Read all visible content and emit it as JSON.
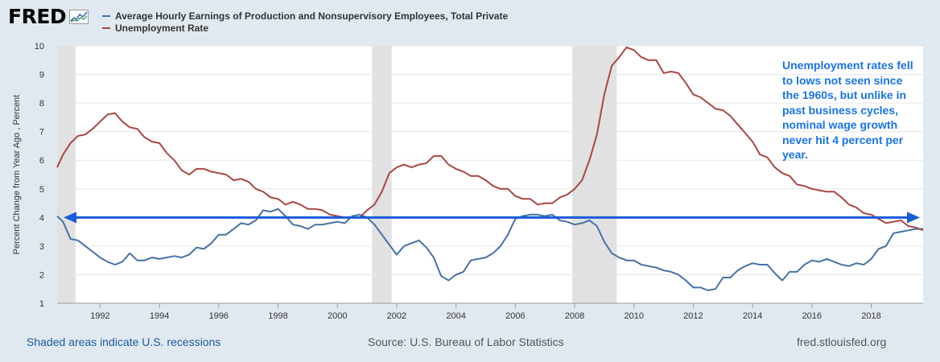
{
  "header": {
    "logo": "FRED"
  },
  "chart_data": {
    "type": "line",
    "ylabel": "Percent Change from Year Ago , Percent",
    "ylim": [
      1,
      10
    ],
    "yticks": [
      1,
      2,
      3,
      4,
      5,
      6,
      7,
      8,
      9,
      10
    ],
    "xlim": [
      1990.55,
      2019.75
    ],
    "xticks": [
      1992,
      1994,
      1996,
      1998,
      2000,
      2002,
      2004,
      2006,
      2008,
      2010,
      2012,
      2014,
      2016,
      2018
    ],
    "grid": true,
    "legend_position": "top-left",
    "recessions": [
      [
        1990.55,
        1991.17
      ],
      [
        2001.17,
        2001.83
      ],
      [
        2007.92,
        2009.42
      ]
    ],
    "series": [
      {
        "name": "Average Hourly Earnings of Production and Nonsupervisory Employees, Total Private",
        "color": "#4572a7",
        "x": [
          1990.55,
          1990.75,
          1991.0,
          1991.25,
          1991.5,
          1991.75,
          1992.0,
          1992.25,
          1992.5,
          1992.75,
          1993.0,
          1993.25,
          1993.5,
          1993.75,
          1994.0,
          1994.25,
          1994.5,
          1994.75,
          1995.0,
          1995.25,
          1995.5,
          1995.75,
          1996.0,
          1996.25,
          1996.5,
          1996.75,
          1997.0,
          1997.25,
          1997.5,
          1997.75,
          1998.0,
          1998.25,
          1998.5,
          1998.75,
          1999.0,
          1999.25,
          1999.5,
          1999.75,
          2000.0,
          2000.25,
          2000.5,
          2000.75,
          2001.0,
          2001.25,
          2001.5,
          2001.75,
          2002.0,
          2002.25,
          2002.5,
          2002.75,
          2003.0,
          2003.25,
          2003.5,
          2003.75,
          2004.0,
          2004.25,
          2004.5,
          2004.75,
          2005.0,
          2005.25,
          2005.5,
          2005.75,
          2006.0,
          2006.25,
          2006.5,
          2006.75,
          2007.0,
          2007.25,
          2007.5,
          2007.75,
          2008.0,
          2008.25,
          2008.5,
          2008.75,
          2009.0,
          2009.25,
          2009.5,
          2009.75,
          2010.0,
          2010.25,
          2010.5,
          2010.75,
          2011.0,
          2011.25,
          2011.5,
          2011.75,
          2012.0,
          2012.25,
          2012.5,
          2012.75,
          2013.0,
          2013.25,
          2013.5,
          2013.75,
          2014.0,
          2014.25,
          2014.5,
          2014.75,
          2015.0,
          2015.25,
          2015.5,
          2015.75,
          2016.0,
          2016.25,
          2016.5,
          2016.75,
          2017.0,
          2017.25,
          2017.5,
          2017.75,
          2018.0,
          2018.25,
          2018.5,
          2018.75,
          2019.0,
          2019.25,
          2019.5,
          2019.75
        ],
        "values": [
          4.05,
          3.85,
          3.25,
          3.2,
          3.0,
          2.8,
          2.6,
          2.45,
          2.35,
          2.45,
          2.75,
          2.5,
          2.5,
          2.6,
          2.55,
          2.6,
          2.65,
          2.6,
          2.7,
          2.95,
          2.9,
          3.1,
          3.4,
          3.4,
          3.6,
          3.8,
          3.75,
          3.9,
          4.25,
          4.2,
          4.3,
          4.05,
          3.75,
          3.7,
          3.6,
          3.75,
          3.75,
          3.8,
          3.85,
          3.8,
          4.05,
          4.1,
          4.0,
          3.75,
          3.4,
          3.05,
          2.7,
          3.0,
          3.1,
          3.2,
          2.95,
          2.6,
          1.95,
          1.8,
          2.0,
          2.1,
          2.5,
          2.55,
          2.6,
          2.75,
          3.0,
          3.4,
          3.95,
          4.05,
          4.1,
          4.1,
          4.05,
          4.1,
          3.9,
          3.85,
          3.75,
          3.8,
          3.9,
          3.7,
          3.15,
          2.75,
          2.6,
          2.5,
          2.5,
          2.35,
          2.3,
          2.25,
          2.15,
          2.1,
          2.0,
          1.8,
          1.55,
          1.55,
          1.45,
          1.5,
          1.9,
          1.9,
          2.15,
          2.3,
          2.4,
          2.35,
          2.35,
          2.05,
          1.8,
          2.1,
          2.1,
          2.35,
          2.5,
          2.45,
          2.55,
          2.45,
          2.35,
          2.3,
          2.4,
          2.35,
          2.55,
          2.9,
          3.0,
          3.45,
          3.5,
          3.55,
          3.6,
          3.6
        ]
      },
      {
        "name": "Unemployment Rate",
        "color": "#aa4643",
        "x": [
          1990.55,
          1990.75,
          1991.0,
          1991.25,
          1991.5,
          1991.75,
          1992.0,
          1992.25,
          1992.5,
          1992.75,
          1993.0,
          1993.25,
          1993.5,
          1993.75,
          1994.0,
          1994.25,
          1994.5,
          1994.75,
          1995.0,
          1995.25,
          1995.5,
          1995.75,
          1996.0,
          1996.25,
          1996.5,
          1996.75,
          1997.0,
          1997.25,
          1997.5,
          1997.75,
          1998.0,
          1998.25,
          1998.5,
          1998.75,
          1999.0,
          1999.25,
          1999.5,
          1999.75,
          2000.0,
          2000.25,
          2000.5,
          2000.75,
          2001.0,
          2001.25,
          2001.5,
          2001.75,
          2002.0,
          2002.25,
          2002.5,
          2002.75,
          2003.0,
          2003.25,
          2003.5,
          2003.75,
          2004.0,
          2004.25,
          2004.5,
          2004.75,
          2005.0,
          2005.25,
          2005.5,
          2005.75,
          2006.0,
          2006.25,
          2006.5,
          2006.75,
          2007.0,
          2007.25,
          2007.5,
          2007.75,
          2008.0,
          2008.25,
          2008.5,
          2008.75,
          2009.0,
          2009.25,
          2009.5,
          2009.75,
          2010.0,
          2010.25,
          2010.5,
          2010.75,
          2011.0,
          2011.25,
          2011.5,
          2011.75,
          2012.0,
          2012.25,
          2012.5,
          2012.75,
          2013.0,
          2013.25,
          2013.5,
          2013.75,
          2014.0,
          2014.25,
          2014.5,
          2014.75,
          2015.0,
          2015.25,
          2015.5,
          2015.75,
          2016.0,
          2016.25,
          2016.5,
          2016.75,
          2017.0,
          2017.25,
          2017.5,
          2017.75,
          2018.0,
          2018.25,
          2018.5,
          2018.75,
          2019.0,
          2019.25,
          2019.5,
          2019.75
        ],
        "values": [
          5.75,
          6.2,
          6.6,
          6.85,
          6.9,
          7.1,
          7.35,
          7.6,
          7.65,
          7.35,
          7.15,
          7.1,
          6.8,
          6.65,
          6.6,
          6.25,
          6.0,
          5.65,
          5.5,
          5.7,
          5.7,
          5.6,
          5.55,
          5.5,
          5.3,
          5.35,
          5.25,
          5.0,
          4.9,
          4.7,
          4.65,
          4.45,
          4.55,
          4.45,
          4.3,
          4.3,
          4.25,
          4.1,
          4.05,
          4.0,
          4.0,
          4.0,
          4.25,
          4.45,
          4.9,
          5.55,
          5.75,
          5.85,
          5.75,
          5.85,
          5.9,
          6.15,
          6.15,
          5.85,
          5.7,
          5.6,
          5.45,
          5.45,
          5.3,
          5.1,
          5.0,
          5.0,
          4.75,
          4.65,
          4.65,
          4.45,
          4.5,
          4.5,
          4.7,
          4.8,
          5.0,
          5.3,
          6.0,
          6.9,
          8.3,
          9.3,
          9.6,
          9.95,
          9.85,
          9.6,
          9.5,
          9.5,
          9.05,
          9.1,
          9.05,
          8.7,
          8.3,
          8.2,
          8.0,
          7.8,
          7.75,
          7.55,
          7.25,
          6.95,
          6.65,
          6.2,
          6.1,
          5.75,
          5.55,
          5.45,
          5.15,
          5.1,
          5.0,
          4.95,
          4.9,
          4.9,
          4.7,
          4.45,
          4.35,
          4.15,
          4.1,
          3.95,
          3.8,
          3.85,
          3.9,
          3.7,
          3.65,
          3.55
        ]
      }
    ],
    "reference_line": {
      "y": 4,
      "color": "#1a5bd8"
    }
  },
  "annotation": {
    "text": "Unemployment rates fell to lows not seen since the 1960s, but unlike in past business cycles, nominal wage growth never hit 4 percent per year."
  },
  "footer": {
    "left": "Shaded areas indicate U.S. recessions",
    "center": "Source: U.S. Bureau of Labor Statistics",
    "right": "fred.stlouisfed.org"
  }
}
